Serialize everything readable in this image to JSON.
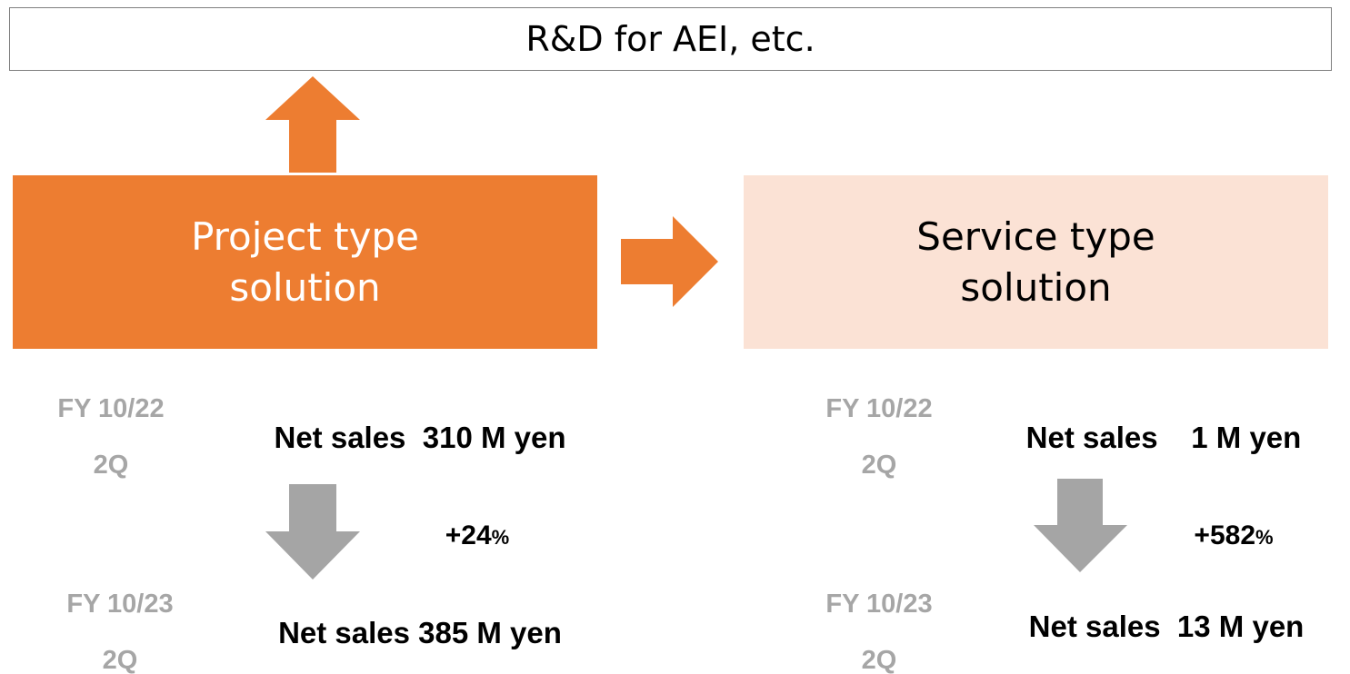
{
  "header": {
    "title": "R&D for AEI, etc."
  },
  "solutions": [
    {
      "name": [
        "Project type",
        "solution"
      ],
      "before": {
        "period": [
          "FY 10/22",
          "2Q"
        ],
        "sales": "Net sales  310 M yen"
      },
      "growth": {
        "value": "+24",
        "unit": "%"
      },
      "after": {
        "period": [
          "FY 10/23",
          "2Q"
        ],
        "sales": "Net sales 385 M yen"
      }
    },
    {
      "name": [
        "Service type",
        "solution"
      ],
      "before": {
        "period": [
          "FY 10/22",
          "2Q"
        ],
        "sales": "Net sales    1 M yen"
      },
      "growth": {
        "value": "+582",
        "unit": "%"
      },
      "after": {
        "period": [
          "FY 10/23",
          "2Q"
        ],
        "sales": "Net sales  13 M yen"
      }
    }
  ]
}
